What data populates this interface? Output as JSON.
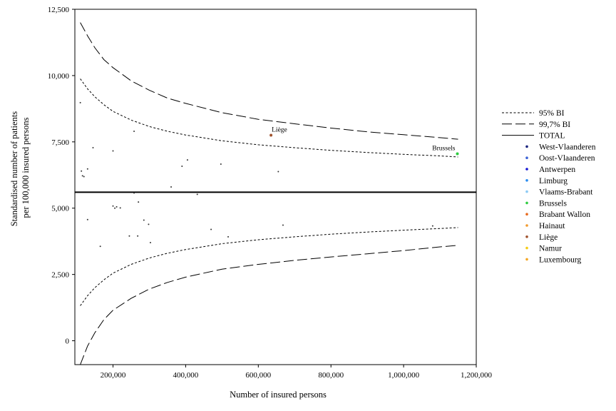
{
  "chart_data": {
    "type": "scatter",
    "xlabel": "Number of insured persons",
    "ylabel_lines": [
      "Standardised number of patients",
      "per 100,000 insured persons"
    ],
    "xlim": [
      95000,
      1200000
    ],
    "ylim": [
      -900,
      12500
    ],
    "x_ticks": [
      {
        "value": 200000,
        "label": "200,000"
      },
      {
        "value": 400000,
        "label": "400,000"
      },
      {
        "value": 600000,
        "label": "600,000"
      },
      {
        "value": 800000,
        "label": "800,000"
      },
      {
        "value": 1000000,
        "label": "1,000,000"
      },
      {
        "value": 1200000,
        "label": "1,200,000"
      }
    ],
    "y_ticks": [
      {
        "value": 0,
        "label": "0"
      },
      {
        "value": 2500,
        "label": "2,500"
      },
      {
        "value": 5000,
        "label": "5,000"
      },
      {
        "value": 7500,
        "label": "7,500"
      },
      {
        "value": 10000,
        "label": "10,000"
      },
      {
        "value": 12500,
        "label": "12,500"
      }
    ],
    "total": 5600,
    "band_95": {
      "x": [
        110000,
        130000,
        150000,
        175000,
        200000,
        250000,
        300000,
        350000,
        400000,
        500000,
        600000,
        700000,
        800000,
        900000,
        1000000,
        1100000,
        1150000
      ],
      "upper": [
        9880,
        9500,
        9200,
        8900,
        8650,
        8320,
        8080,
        7900,
        7760,
        7540,
        7390,
        7280,
        7180,
        7100,
        7030,
        6970,
        6930
      ],
      "lower": [
        1320,
        1700,
        2000,
        2300,
        2550,
        2880,
        3120,
        3300,
        3440,
        3660,
        3810,
        3920,
        4020,
        4100,
        4170,
        4230,
        4270
      ]
    },
    "band_997": {
      "x": [
        110000,
        130000,
        150000,
        175000,
        200000,
        250000,
        300000,
        350000,
        400000,
        500000,
        600000,
        700000,
        800000,
        900000,
        1000000,
        1100000,
        1150000
      ],
      "upper": [
        12000,
        11500,
        11050,
        10600,
        10300,
        9800,
        9450,
        9150,
        8950,
        8600,
        8350,
        8180,
        8020,
        7880,
        7770,
        7660,
        7600
      ],
      "lower": [
        -900,
        -200,
        300,
        800,
        1150,
        1600,
        1950,
        2200,
        2400,
        2700,
        2880,
        3030,
        3160,
        3280,
        3400,
        3540,
        3600
      ]
    },
    "points": [
      {
        "x": 110000,
        "y": 8980
      },
      {
        "x": 113000,
        "y": 6400
      },
      {
        "x": 116000,
        "y": 6220
      },
      {
        "x": 120000,
        "y": 6190
      },
      {
        "x": 130000,
        "y": 6480
      },
      {
        "x": 145000,
        "y": 7280
      },
      {
        "x": 130000,
        "y": 4570
      },
      {
        "x": 165000,
        "y": 3560
      },
      {
        "x": 200000,
        "y": 7160
      },
      {
        "x": 200000,
        "y": 5080
      },
      {
        "x": 205000,
        "y": 5000
      },
      {
        "x": 210000,
        "y": 5050
      },
      {
        "x": 220000,
        "y": 5010
      },
      {
        "x": 245000,
        "y": 3950
      },
      {
        "x": 258000,
        "y": 7900
      },
      {
        "x": 258000,
        "y": 5570
      },
      {
        "x": 268000,
        "y": 3950
      },
      {
        "x": 270000,
        "y": 5230
      },
      {
        "x": 285000,
        "y": 4550
      },
      {
        "x": 298000,
        "y": 4390
      },
      {
        "x": 303000,
        "y": 3700
      },
      {
        "x": 360000,
        "y": 5800
      },
      {
        "x": 390000,
        "y": 6580
      },
      {
        "x": 405000,
        "y": 6820
      },
      {
        "x": 432000,
        "y": 5520
      },
      {
        "x": 470000,
        "y": 4200
      },
      {
        "x": 497000,
        "y": 6660
      },
      {
        "x": 517000,
        "y": 3920
      },
      {
        "x": 655000,
        "y": 6380
      },
      {
        "x": 668000,
        "y": 4360
      },
      {
        "x": 1080000,
        "y": 4330
      }
    ],
    "highlighted_points": [
      {
        "label": "Liège",
        "x": 635000,
        "y": 7750,
        "color": "#a0522d"
      },
      {
        "label": "Brussels",
        "x": 1148000,
        "y": 7050,
        "color": "#2ecc40"
      }
    ],
    "legend": {
      "position": "right",
      "lines": [
        {
          "label": "95% BI",
          "style": "dotted"
        },
        {
          "label": "99,7% BI",
          "style": "dashed"
        },
        {
          "label": "TOTAL",
          "style": "solid"
        }
      ],
      "regions": [
        {
          "label": "West-Vlaanderen",
          "color": "#1a237e"
        },
        {
          "label": "Oost-Vlaanderen",
          "color": "#3d63d6"
        },
        {
          "label": "Antwerpen",
          "color": "#1515d4"
        },
        {
          "label": "Limburg",
          "color": "#2a8df0"
        },
        {
          "label": "Vlaams-Brabant",
          "color": "#8ccaf5"
        },
        {
          "label": "Brussels",
          "color": "#2ecc40"
        },
        {
          "label": "Brabant Wallon",
          "color": "#e86a1e"
        },
        {
          "label": "Hainaut",
          "color": "#f29a2e"
        },
        {
          "label": "Liège",
          "color": "#a0522d"
        },
        {
          "label": "Namur",
          "color": "#f5cc16"
        },
        {
          "label": "Luxembourg",
          "color": "#f5a623"
        }
      ]
    }
  }
}
